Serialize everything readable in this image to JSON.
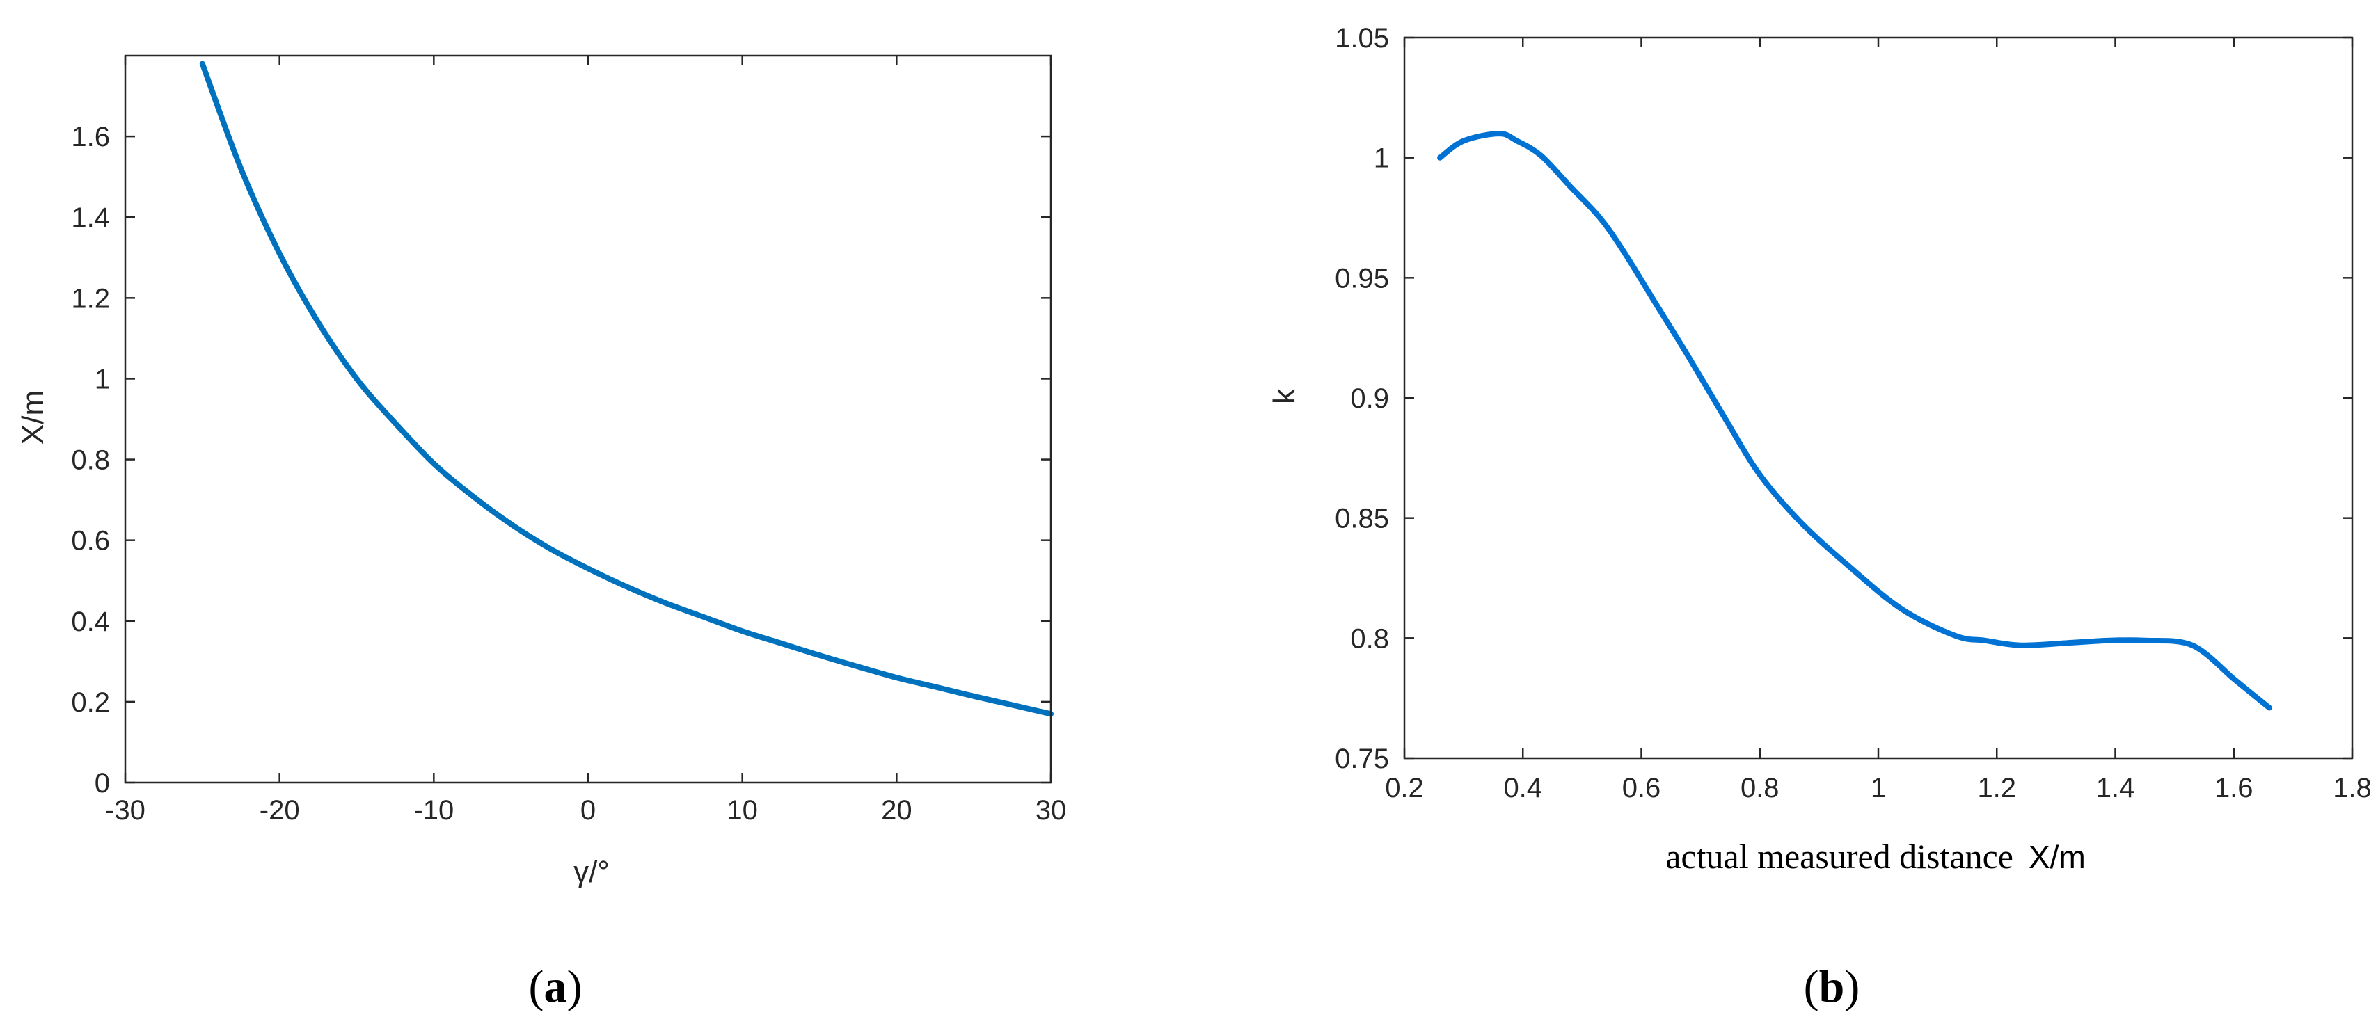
{
  "captions": {
    "a": {
      "open": "(",
      "letter": "a",
      "close": ")"
    },
    "b": {
      "open": "(",
      "letter": "b",
      "close": ")"
    }
  },
  "chart_data": [
    {
      "id": "a",
      "type": "line",
      "xlabel": "γ/°",
      "ylabel": "X/m",
      "xlim": [
        -30,
        30
      ],
      "ylim": [
        0,
        1.8
      ],
      "xticks": [
        -30,
        -20,
        -10,
        0,
        10,
        20,
        30
      ],
      "yticks": [
        0,
        0.2,
        0.4,
        0.6,
        0.8,
        1,
        1.2,
        1.4,
        1.6
      ],
      "xtick_labels": [
        "-30",
        "-20",
        "-10",
        "0",
        "10",
        "20",
        "30"
      ],
      "ytick_labels": [
        "0",
        "0.2",
        "0.4",
        "0.6",
        "0.8",
        "1",
        "1.2",
        "1.4",
        "1.6"
      ],
      "box": true,
      "grid": false,
      "color": "#0072bd",
      "series": [
        {
          "x": [
            -25,
            -22.5,
            -20,
            -17.5,
            -15,
            -12.5,
            -10,
            -7.5,
            -5,
            -2.5,
            0,
            2.5,
            5,
            7.5,
            10,
            12.5,
            15,
            17.5,
            20,
            22.5,
            25,
            27.5,
            30
          ],
          "y": [
            1.78,
            1.52,
            1.31,
            1.14,
            1.0,
            0.89,
            0.79,
            0.71,
            0.64,
            0.58,
            0.53,
            0.485,
            0.445,
            0.41,
            0.375,
            0.345,
            0.315,
            0.287,
            0.26,
            0.237,
            0.214,
            0.192,
            0.17
          ]
        }
      ]
    },
    {
      "id": "b",
      "type": "line",
      "xlabel": "actual measured distance  X/m",
      "xlabel_parts": [
        "actual measured distance",
        "X/m"
      ],
      "ylabel": "k",
      "xlim": [
        0.2,
        1.8
      ],
      "ylim": [
        0.75,
        1.05
      ],
      "xticks": [
        0.2,
        0.4,
        0.6,
        0.8,
        1,
        1.2,
        1.4,
        1.6,
        1.8
      ],
      "yticks": [
        0.75,
        0.8,
        0.85,
        0.9,
        0.95,
        1,
        1.05
      ],
      "xtick_labels": [
        "0.2",
        "0.4",
        "0.6",
        "0.8",
        "1",
        "1.2",
        "1.4",
        "1.6",
        "1.8"
      ],
      "ytick_labels": [
        "0.75",
        "0.8",
        "0.85",
        "0.9",
        "0.95",
        "1",
        "1.05"
      ],
      "box": true,
      "grid": false,
      "color": "#0072d4",
      "series": [
        {
          "x": [
            0.26,
            0.3,
            0.36,
            0.39,
            0.43,
            0.48,
            0.53,
            0.57,
            0.62,
            0.68,
            0.74,
            0.8,
            0.87,
            0.95,
            1.04,
            1.13,
            1.18,
            1.24,
            1.32,
            1.39,
            1.45,
            1.53,
            1.6,
            1.63,
            1.66
          ],
          "y": [
            1.0,
            1.007,
            1.01,
            1.007,
            1.001,
            0.988,
            0.975,
            0.961,
            0.941,
            0.917,
            0.892,
            0.868,
            0.848,
            0.83,
            0.812,
            0.801,
            0.799,
            0.797,
            0.798,
            0.799,
            0.799,
            0.797,
            0.783,
            0.777,
            0.771
          ]
        }
      ]
    }
  ]
}
